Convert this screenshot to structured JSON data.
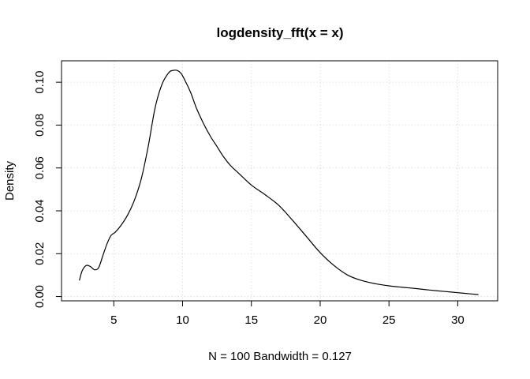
{
  "chart_data": {
    "type": "line",
    "title": "logdensity_fft(x = x)",
    "xlabel": "N = 100   Bandwidth = 0.127",
    "ylabel": "Density",
    "xlim": [
      1.2,
      32.9
    ],
    "ylim": [
      -0.002,
      0.11
    ],
    "x_ticks": [
      5,
      10,
      15,
      20,
      25,
      30
    ],
    "y_ticks": [
      0.0,
      0.02,
      0.04,
      0.06,
      0.08,
      0.1
    ],
    "x_tick_labels": [
      "5",
      "10",
      "15",
      "20",
      "25",
      "30"
    ],
    "y_tick_labels": [
      "0.00",
      "0.02",
      "0.04",
      "0.06",
      "0.08",
      "0.10"
    ],
    "grid": true,
    "grid_style": "dotted",
    "line_color": "#000000",
    "grid_color": "#d3d3d3",
    "series": [
      {
        "x": [
          2.5,
          2.7,
          3.0,
          3.3,
          3.6,
          3.9,
          4.2,
          4.5,
          4.8,
          5.1,
          5.5,
          6.0,
          6.5,
          7.0,
          7.5,
          8.0,
          8.5,
          9.0,
          9.3,
          9.6,
          9.9,
          10.2,
          10.6,
          11.0,
          11.5,
          12.0,
          12.5,
          13.0,
          13.5,
          14.0,
          15.0,
          16.0,
          17.0,
          18.0,
          19.0,
          20.0,
          21.0,
          22.0,
          23.0,
          24.0,
          25.0,
          26.0,
          27.0,
          28.0,
          29.0,
          30.0,
          31.0,
          31.5
        ],
        "y": [
          0.0075,
          0.012,
          0.0145,
          0.014,
          0.0125,
          0.0135,
          0.019,
          0.0245,
          0.0285,
          0.03,
          0.033,
          0.038,
          0.045,
          0.055,
          0.07,
          0.088,
          0.099,
          0.1045,
          0.1055,
          0.1055,
          0.104,
          0.1005,
          0.095,
          0.088,
          0.081,
          0.075,
          0.07,
          0.065,
          0.061,
          0.058,
          0.052,
          0.0475,
          0.0425,
          0.0355,
          0.028,
          0.0205,
          0.0145,
          0.01,
          0.0075,
          0.006,
          0.005,
          0.0043,
          0.0037,
          0.003,
          0.0024,
          0.0018,
          0.0012,
          0.0009
        ]
      }
    ]
  }
}
